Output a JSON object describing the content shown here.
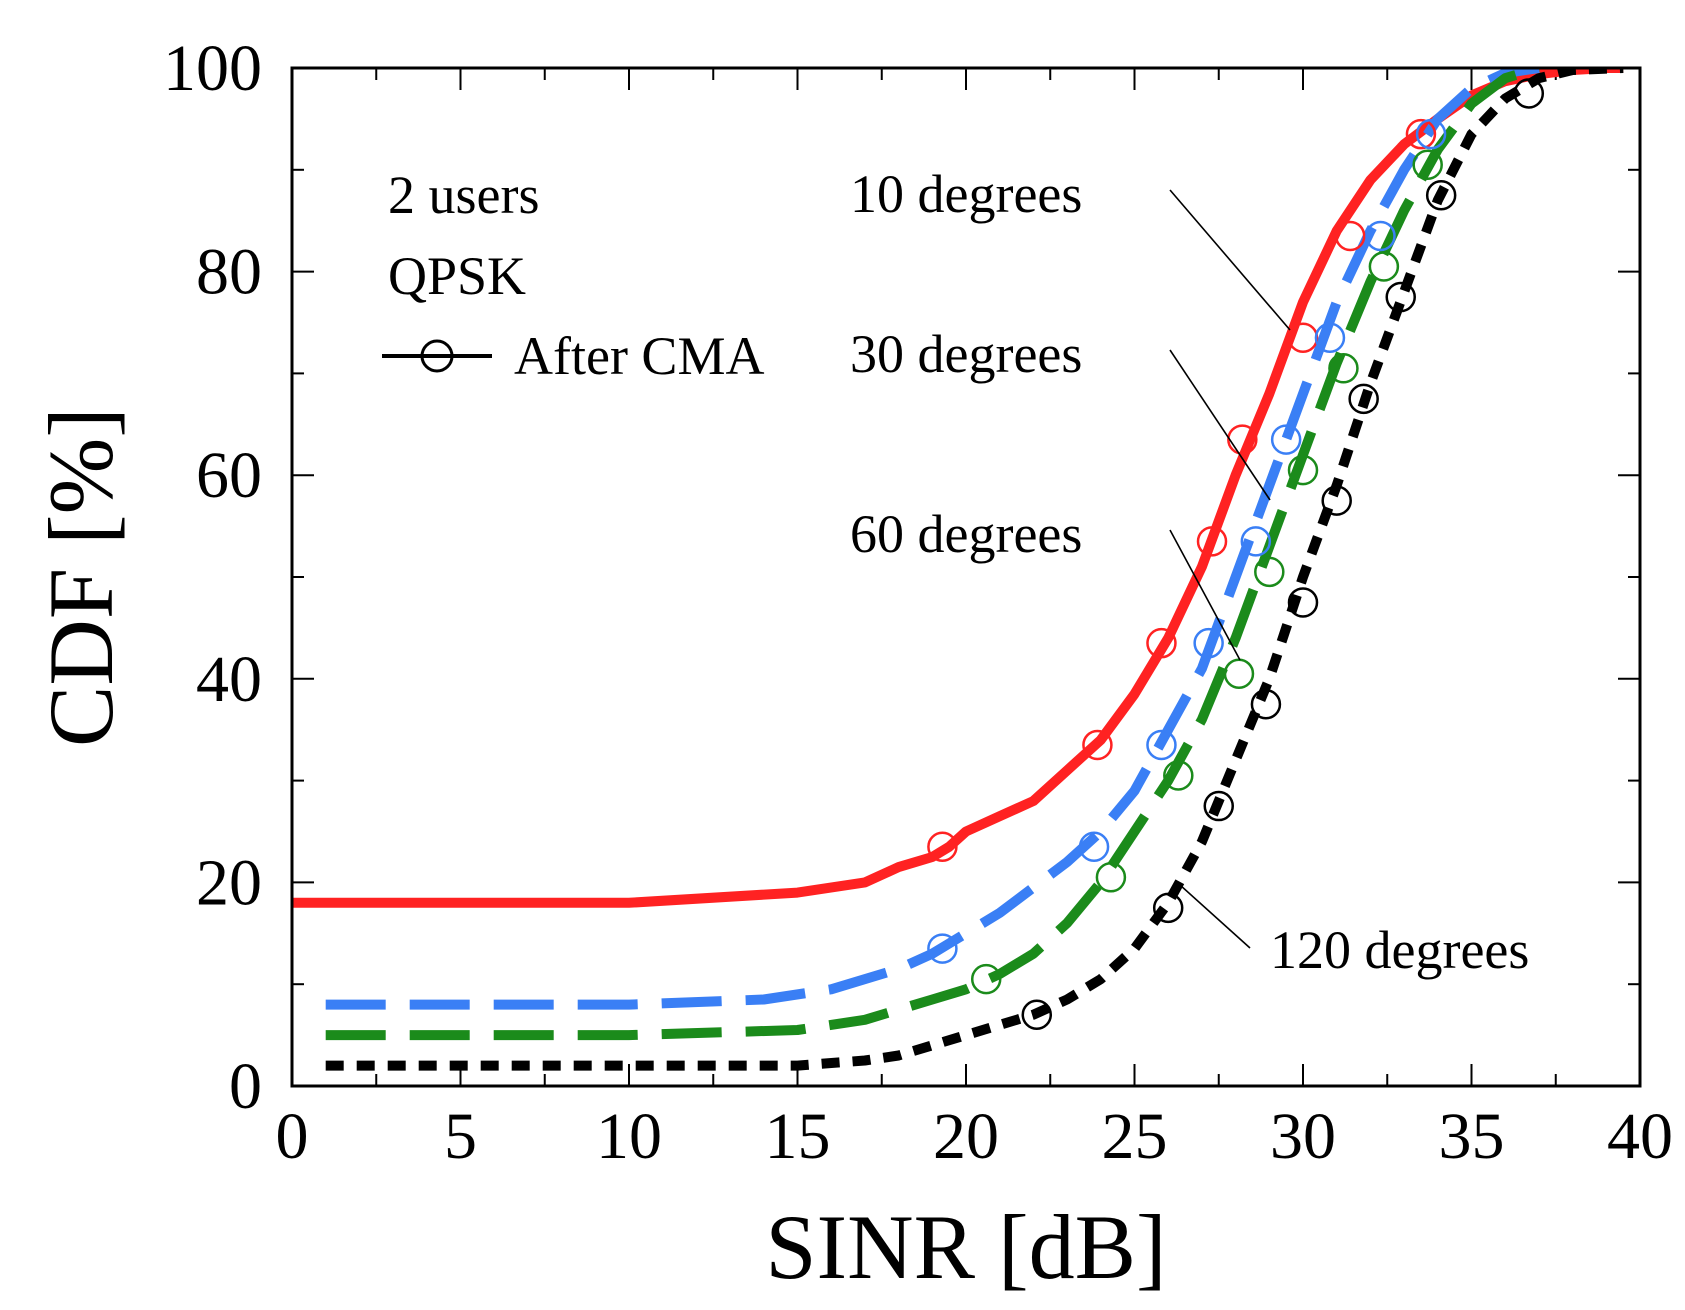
{
  "chart_data": {
    "type": "line",
    "title": "",
    "xlabel": "SINR [dB]",
    "ylabel": "CDF [%]",
    "xlim": [
      0,
      40
    ],
    "ylim": [
      0,
      100
    ],
    "xticks": [
      0,
      5,
      10,
      15,
      20,
      25,
      30,
      35,
      40
    ],
    "xtick_labels": [
      "0",
      "5",
      "10",
      "15",
      "20",
      "25",
      "30",
      "35",
      "40"
    ],
    "yticks": [
      0,
      20,
      40,
      60,
      80,
      100
    ],
    "ytick_labels": [
      "0",
      "20",
      "40",
      "60",
      "80",
      "100"
    ],
    "grid": false,
    "legend": {
      "position": "top-left",
      "lines": [
        "2 users",
        "QPSK"
      ],
      "marker_entry": "After CMA"
    },
    "series": [
      {
        "name": "10 degrees",
        "label": "10 degrees",
        "color": "#ff2222",
        "style": "solid",
        "x": [
          0,
          5,
          10,
          15,
          17,
          18,
          19,
          19.5,
          20,
          21,
          22,
          23,
          24,
          25,
          26,
          27,
          28,
          29,
          30,
          31,
          32,
          33,
          34,
          35,
          36,
          37,
          38,
          39,
          39.5
        ],
        "y": [
          18,
          18,
          18,
          19,
          20,
          21.5,
          22.5,
          23.5,
          25,
          26.5,
          28,
          31,
          34,
          38.5,
          44,
          51,
          60,
          68,
          77,
          84,
          89,
          92.5,
          95,
          97.3,
          98.7,
          99.4,
          99.8,
          100,
          100
        ],
        "markers_x": [
          19.3,
          23.9,
          25.8,
          27.3,
          28.2,
          30.0,
          31.4,
          33.5
        ],
        "markers_y": [
          23.5,
          33.5,
          43.5,
          53.5,
          63.5,
          73.5,
          83.5,
          93.5
        ]
      },
      {
        "name": "30 degrees",
        "label": "30 degrees",
        "color": "#3a7ff5",
        "style": "dash",
        "x": [
          1,
          5,
          10,
          14,
          16,
          18,
          19,
          19.5,
          20,
          21,
          22,
          23,
          24,
          25,
          26,
          27,
          28,
          29,
          30,
          31,
          32,
          33,
          34,
          35,
          36,
          37
        ],
        "y": [
          8,
          8,
          8,
          8.5,
          9.5,
          11.5,
          13,
          14,
          15,
          17,
          19.5,
          22,
          25,
          29,
          35,
          41,
          50,
          59,
          68,
          77,
          84,
          90,
          95,
          98,
          99.5,
          100
        ],
        "markers_x": [
          19.3,
          23.8,
          25.8,
          27.2,
          28.6,
          29.5,
          30.8,
          32.3,
          33.8
        ],
        "markers_y": [
          13.5,
          23.5,
          33.5,
          43.5,
          53.5,
          63.5,
          73.5,
          83.5,
          93.5
        ]
      },
      {
        "name": "60 degrees",
        "label": "60 degrees",
        "color": "#1b8b1b",
        "style": "dash",
        "x": [
          1,
          5,
          10,
          15,
          17,
          18,
          19,
          20,
          21,
          22,
          23,
          24,
          25,
          26,
          27,
          28,
          29,
          30,
          31,
          32,
          33,
          34,
          35,
          36,
          37
        ],
        "y": [
          5,
          5,
          5,
          5.5,
          6.5,
          7.5,
          8.5,
          9.5,
          11,
          13,
          16,
          20,
          25,
          30,
          36,
          44,
          53,
          62,
          71,
          79,
          86,
          92,
          96.5,
          99,
          100
        ],
        "markers_x": [
          20.6,
          24.3,
          26.3,
          28.1,
          29.0,
          30.0,
          31.2,
          32.4,
          33.7
        ],
        "markers_y": [
          10.5,
          20.5,
          30.5,
          40.5,
          50.5,
          60.5,
          70.5,
          80.5,
          90.5
        ]
      },
      {
        "name": "120 degrees",
        "label": "120 degrees",
        "color": "#000000",
        "style": "dot",
        "x": [
          1,
          5,
          10,
          15,
          17,
          18,
          19,
          20,
          21,
          22,
          23,
          24,
          25,
          26,
          27,
          28,
          29,
          30,
          31,
          32,
          33,
          34,
          35,
          36,
          37,
          38,
          39.5
        ],
        "y": [
          2,
          2,
          2,
          2,
          2.5,
          3,
          4,
          5,
          6,
          7,
          8.5,
          10.5,
          13.5,
          18,
          24,
          32,
          40,
          50,
          59,
          69,
          78,
          87,
          93.5,
          97,
          99,
          99.8,
          100
        ],
        "markers_x": [
          22.1,
          26.0,
          27.5,
          28.9,
          30.0,
          31.0,
          31.8,
          32.9,
          34.1,
          36.7
        ],
        "markers_y": [
          7,
          17.5,
          27.5,
          37.5,
          47.5,
          57.5,
          67.5,
          77.5,
          87.5,
          97.5
        ]
      }
    ]
  }
}
